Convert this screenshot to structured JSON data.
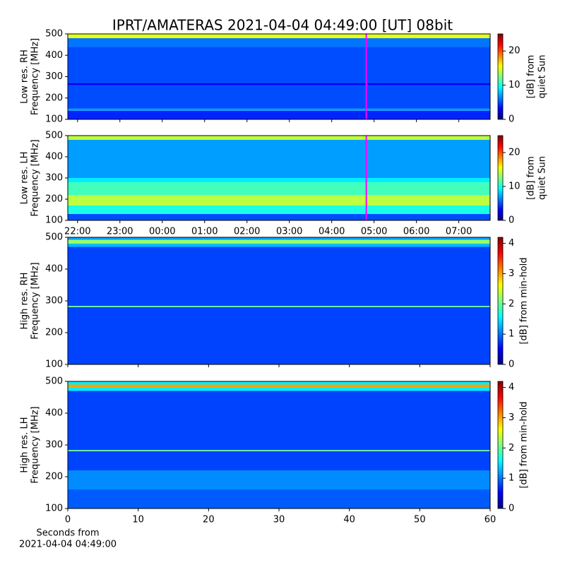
{
  "title": "IPRT/AMATERAS 2021-04-04 04:49:00 [UT]   08bit",
  "chart_data": [
    {
      "type": "heatmap",
      "ylabel": [
        "Low res. RH",
        "Frequency [MHz]"
      ],
      "ylim": [
        100,
        500
      ],
      "yticks": [
        100,
        200,
        300,
        400,
        500
      ],
      "xlim": [
        21.77,
        31.74
      ],
      "cursor": {
        "value": 28.817,
        "color": "#ff00ff"
      },
      "clim": [
        0,
        25
      ],
      "cticks": [
        0,
        10,
        20
      ],
      "colorbar_label": [
        "[dB] from",
        "quiet Sun"
      ],
      "bands": [
        {
          "from": 100,
          "to": 140,
          "value": 4
        },
        {
          "from": 140,
          "to": 150,
          "value": 7
        },
        {
          "from": 150,
          "to": 260,
          "value": 5
        },
        {
          "from": 260,
          "to": 270,
          "value": 3
        },
        {
          "from": 270,
          "to": 440,
          "value": 5
        },
        {
          "from": 440,
          "to": 480,
          "value": 6
        },
        {
          "from": 480,
          "to": 500,
          "value": 15
        }
      ]
    },
    {
      "type": "heatmap",
      "ylabel": [
        "Low res. LH",
        "Frequency [MHz]"
      ],
      "ylim": [
        100,
        500
      ],
      "yticks": [
        100,
        200,
        300,
        400,
        500
      ],
      "xlim": [
        21.77,
        31.74
      ],
      "xticks": [
        {
          "value": 22,
          "label": "22:00"
        },
        {
          "value": 23,
          "label": "23:00"
        },
        {
          "value": 24,
          "label": "00:00"
        },
        {
          "value": 25,
          "label": "01:00"
        },
        {
          "value": 26,
          "label": "02:00"
        },
        {
          "value": 27,
          "label": "03:00"
        },
        {
          "value": 28,
          "label": "04:00"
        },
        {
          "value": 29,
          "label": "05:00"
        },
        {
          "value": 30,
          "label": "06:00"
        },
        {
          "value": 31,
          "label": "07:00"
        }
      ],
      "cursor": {
        "value": 28.817,
        "color": "#ff00ff"
      },
      "clim": [
        0,
        25
      ],
      "cticks": [
        0,
        10,
        20
      ],
      "colorbar_label": [
        "[dB] from",
        "quiet Sun"
      ],
      "bands": [
        {
          "from": 100,
          "to": 130,
          "value": 5
        },
        {
          "from": 130,
          "to": 170,
          "value": 10
        },
        {
          "from": 170,
          "to": 220,
          "value": 14
        },
        {
          "from": 220,
          "to": 280,
          "value": 11
        },
        {
          "from": 280,
          "to": 300,
          "value": 9
        },
        {
          "from": 300,
          "to": 360,
          "value": 7
        },
        {
          "from": 360,
          "to": 480,
          "value": 7
        },
        {
          "from": 480,
          "to": 500,
          "value": 14
        }
      ]
    },
    {
      "type": "heatmap",
      "ylabel": [
        "High res. RH",
        "Frequency [MHz]"
      ],
      "ylim": [
        100,
        500
      ],
      "yticks": [
        100,
        200,
        300,
        400,
        500
      ],
      "xlim": [
        0,
        60
      ],
      "clim": [
        0,
        4.2
      ],
      "cticks": [
        0,
        1,
        2,
        3,
        4
      ],
      "colorbar_label": [
        "[dB] from min-hold"
      ],
      "bands": [
        {
          "from": 100,
          "to": 280,
          "value": 0.8
        },
        {
          "from": 280,
          "to": 284,
          "value": 2
        },
        {
          "from": 284,
          "to": 470,
          "value": 0.8
        },
        {
          "from": 470,
          "to": 480,
          "value": 1.3
        },
        {
          "from": 480,
          "to": 492,
          "value": 2.2
        },
        {
          "from": 492,
          "to": 500,
          "value": 1.2
        }
      ]
    },
    {
      "type": "heatmap",
      "ylabel": [
        "High res. LH",
        "Frequency [MHz]"
      ],
      "ylim": [
        100,
        500
      ],
      "yticks": [
        100,
        200,
        300,
        400,
        500
      ],
      "xlim": [
        0,
        60
      ],
      "xticks": [
        0,
        10,
        20,
        30,
        40,
        50,
        60
      ],
      "xlabel": [
        "Seconds from",
        "2021-04-04 04:49:00"
      ],
      "clim": [
        0,
        4.2
      ],
      "cticks": [
        0,
        1,
        2,
        3,
        4
      ],
      "colorbar_label": [
        "[dB] from min-hold"
      ],
      "bands": [
        {
          "from": 100,
          "to": 160,
          "value": 0.9
        },
        {
          "from": 160,
          "to": 220,
          "value": 1.1
        },
        {
          "from": 220,
          "to": 280,
          "value": 0.8
        },
        {
          "from": 280,
          "to": 284,
          "value": 2
        },
        {
          "from": 284,
          "to": 470,
          "value": 0.8
        },
        {
          "from": 470,
          "to": 480,
          "value": 1.5
        },
        {
          "from": 480,
          "to": 490,
          "value": 3
        },
        {
          "from": 490,
          "to": 500,
          "value": 1.5
        }
      ]
    }
  ]
}
